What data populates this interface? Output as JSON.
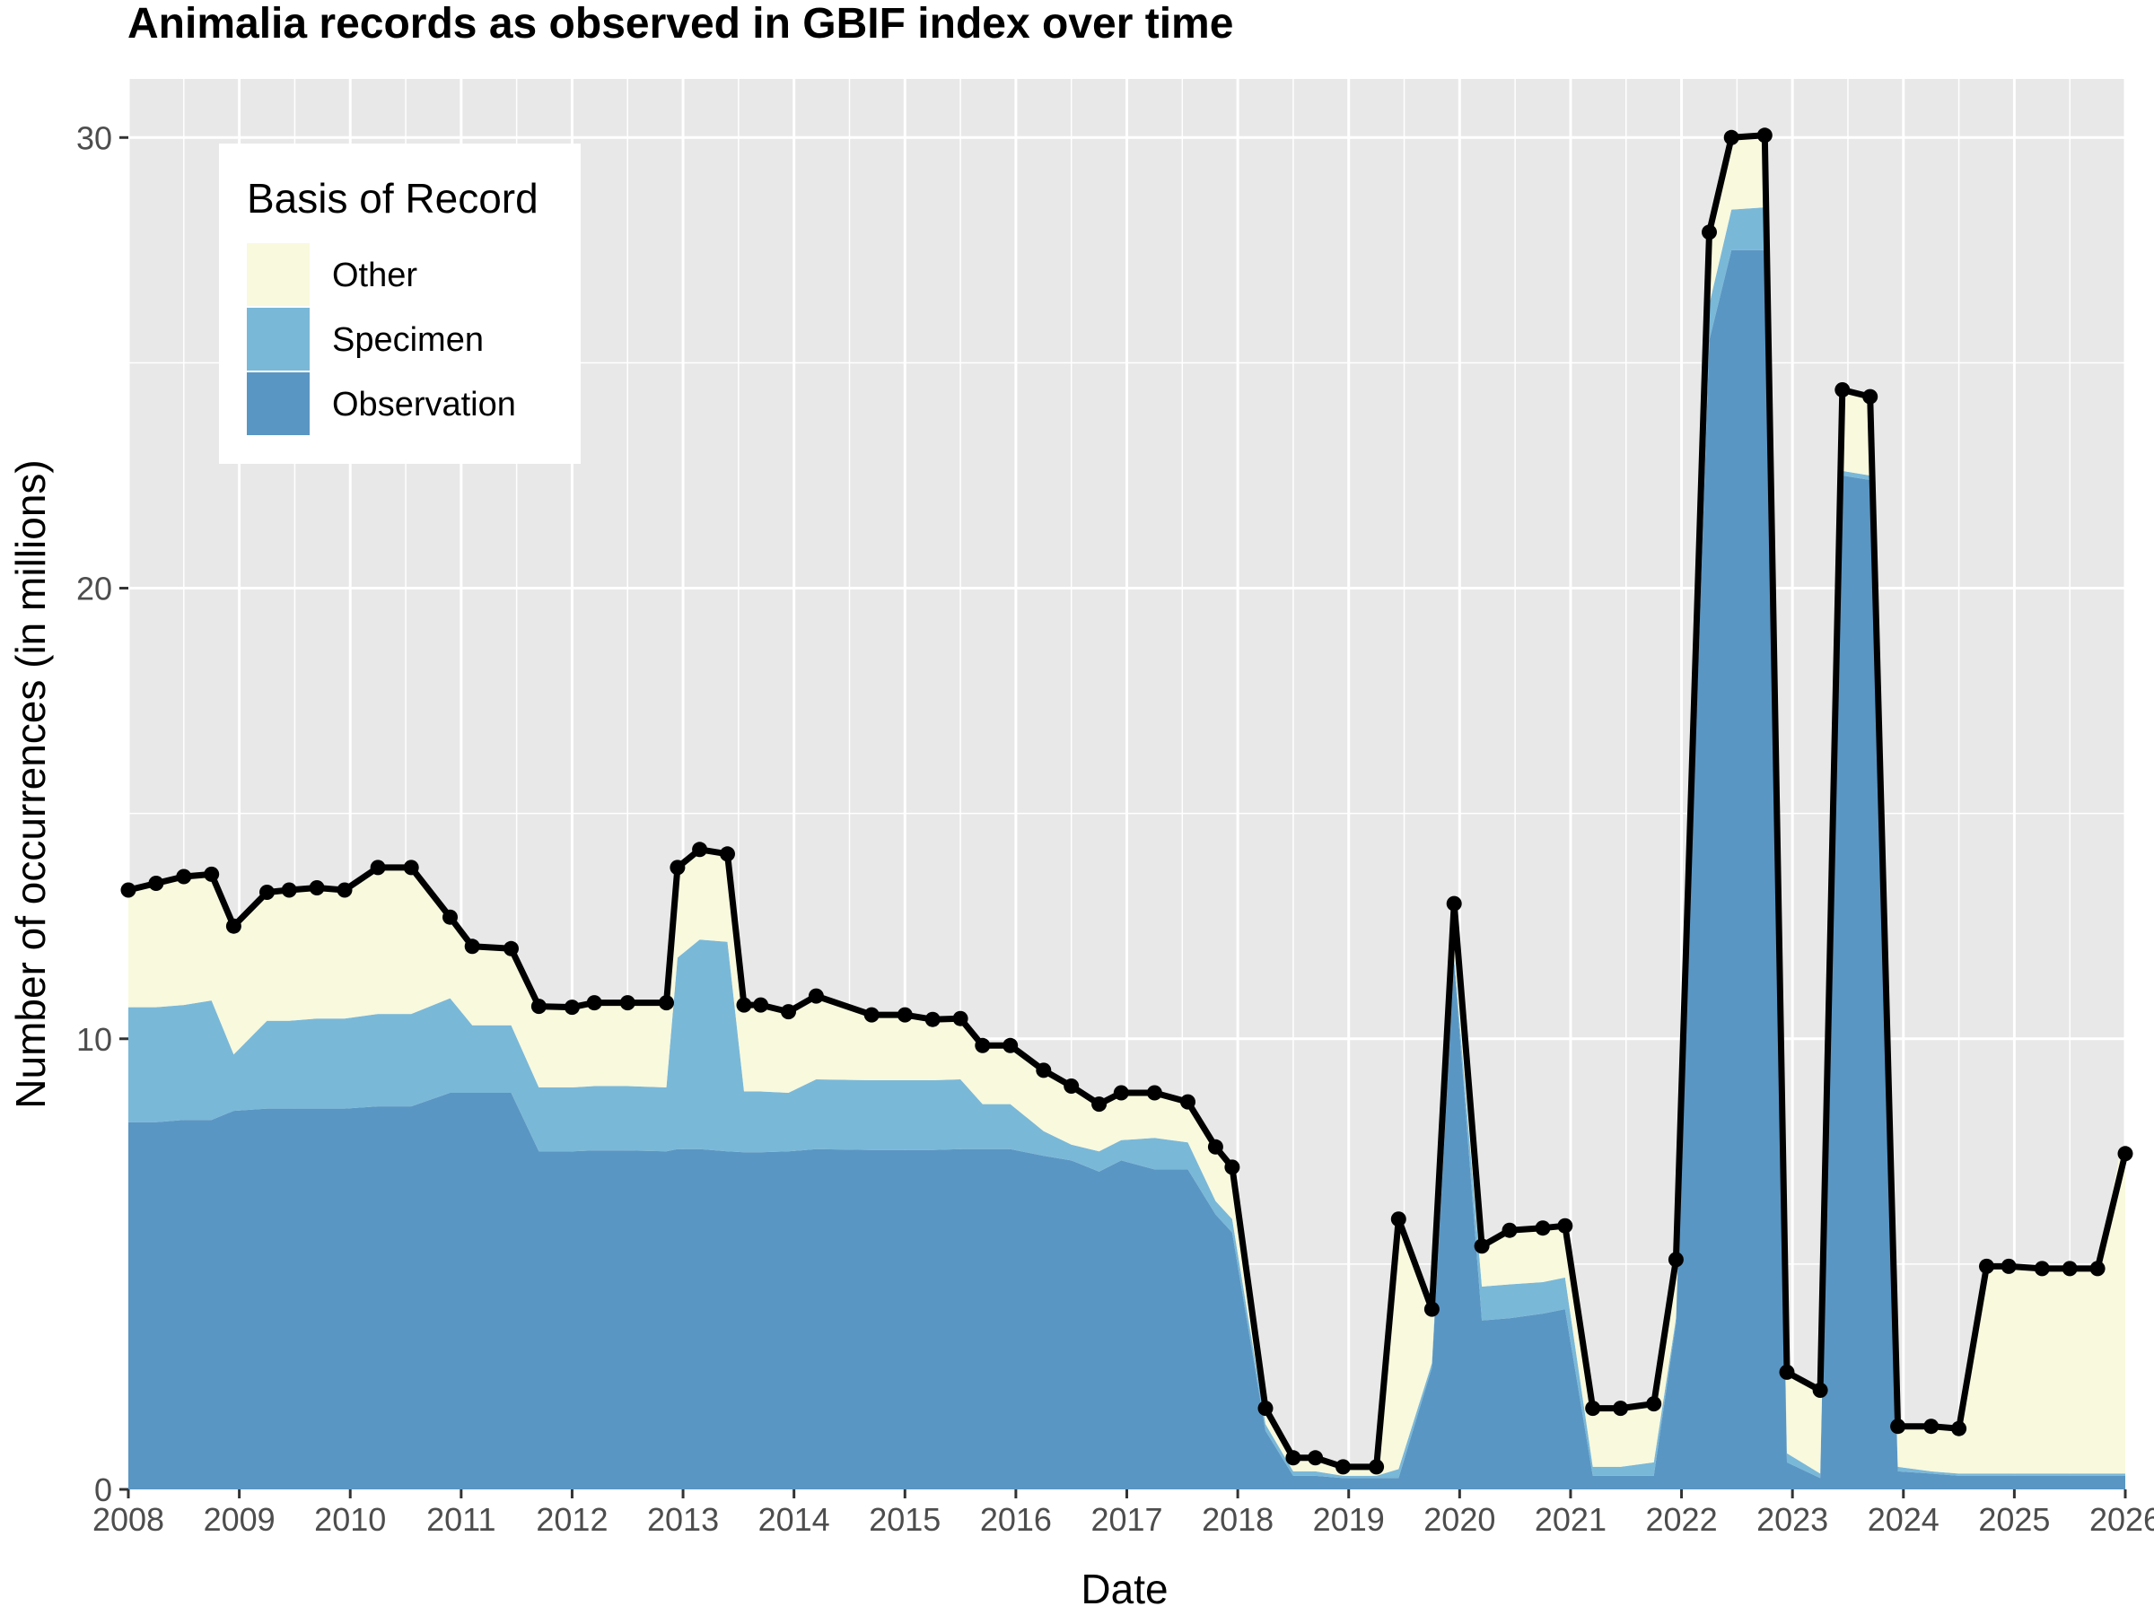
{
  "chart_data": {
    "type": "area",
    "title": "Animalia records as observed in GBIF index over time",
    "xlabel": "Date",
    "ylabel": "Number of occurrences (in millions)",
    "xlim": [
      2008,
      2026
    ],
    "ylim": [
      0,
      31.3
    ],
    "x_ticks": [
      "2008",
      "2009",
      "2010",
      "2011",
      "2012",
      "2013",
      "2014",
      "2015",
      "2016",
      "2017",
      "2018",
      "2019",
      "2020",
      "2021",
      "2022",
      "2023",
      "2024",
      "2025",
      "2026"
    ],
    "y_ticks": [
      0,
      10,
      20,
      30
    ],
    "grid": true,
    "legend": {
      "title": "Basis of Record",
      "position": "top-left",
      "entries": [
        {
          "name": "Other",
          "color": "#f8f9dd"
        },
        {
          "name": "Specimen",
          "color": "#7ab8d8"
        },
        {
          "name": "Observation",
          "color": "#5a96c3"
        }
      ]
    },
    "colors": {
      "panel": "#e8e8e8",
      "grid": "#ffffff",
      "total_line": "#000000"
    },
    "x": [
      2008.0,
      2008.25,
      2008.5,
      2008.75,
      2008.95,
      2009.25,
      2009.45,
      2009.7,
      2009.95,
      2010.25,
      2010.55,
      2010.9,
      2011.1,
      2011.45,
      2011.7,
      2012.0,
      2012.2,
      2012.5,
      2012.85,
      2012.95,
      2013.15,
      2013.4,
      2013.55,
      2013.7,
      2013.95,
      2014.2,
      2014.7,
      2015.0,
      2015.25,
      2015.5,
      2015.7,
      2015.95,
      2016.25,
      2016.5,
      2016.75,
      2016.95,
      2017.25,
      2017.55,
      2017.8,
      2017.95,
      2018.25,
      2018.5,
      2018.7,
      2018.95,
      2019.25,
      2019.45,
      2019.75,
      2019.95,
      2020.2,
      2020.45,
      2020.75,
      2020.95,
      2021.2,
      2021.45,
      2021.75,
      2021.95,
      2022.25,
      2022.45,
      2022.75,
      2022.95,
      2023.25,
      2023.45,
      2023.7,
      2023.95,
      2024.25,
      2024.5,
      2024.75,
      2024.95,
      2025.25,
      2025.5,
      2025.75,
      2025.95,
      2026.0
    ],
    "series": [
      {
        "name": "Observation",
        "values": [
          8.15,
          8.15,
          8.2,
          8.2,
          8.4,
          8.45,
          8.45,
          8.45,
          8.45,
          8.5,
          8.5,
          8.8,
          8.8,
          8.8,
          7.5,
          7.5,
          7.52,
          7.52,
          7.5,
          7.55,
          7.55,
          7.5,
          7.48,
          7.48,
          7.5,
          7.55,
          7.53,
          7.53,
          7.53,
          7.55,
          7.55,
          7.55,
          7.4,
          7.3,
          7.05,
          7.3,
          7.1,
          7.1,
          6.1,
          5.7,
          1.3,
          0.3,
          0.3,
          0.25,
          0.25,
          0.25,
          2.7,
          11.7,
          3.75,
          3.8,
          3.9,
          4.0,
          0.3,
          0.3,
          0.3,
          3.7,
          25.5,
          27.5,
          27.5,
          0.6,
          0.25,
          22.5,
          22.4,
          0.4,
          0.35,
          0.3,
          0.3,
          0.3,
          0.3,
          0.3,
          0.3,
          0.3,
          0.3
        ]
      },
      {
        "name": "Specimen",
        "values": [
          2.55,
          2.55,
          2.55,
          2.65,
          1.25,
          1.95,
          1.95,
          2.0,
          2.0,
          2.05,
          2.05,
          2.1,
          1.5,
          1.5,
          1.42,
          1.42,
          1.43,
          1.43,
          1.42,
          4.25,
          4.65,
          4.65,
          1.35,
          1.35,
          1.3,
          1.55,
          1.55,
          1.55,
          1.55,
          1.55,
          1.0,
          1.0,
          0.55,
          0.35,
          0.45,
          0.45,
          0.7,
          0.6,
          0.3,
          0.3,
          0.15,
          0.1,
          0.1,
          0.05,
          0.05,
          0.2,
          0.1,
          0.1,
          0.75,
          0.75,
          0.7,
          0.7,
          0.2,
          0.2,
          0.3,
          0.1,
          0.8,
          0.9,
          0.95,
          0.2,
          0.1,
          0.1,
          0.1,
          0.1,
          0.05,
          0.05,
          0.05,
          0.05,
          0.05,
          0.05,
          0.05,
          0.05,
          0.05
        ]
      },
      {
        "name": "Other",
        "values": [
          2.6,
          2.75,
          2.85,
          2.85,
          2.85,
          2.85,
          2.9,
          2.9,
          2.85,
          3.25,
          3.25,
          1.8,
          1.75,
          1.7,
          1.8,
          1.78,
          1.85,
          1.85,
          1.88,
          2.0,
          2.0,
          1.95,
          1.92,
          1.92,
          1.83,
          1.85,
          1.45,
          1.45,
          1.35,
          1.35,
          1.3,
          1.3,
          1.35,
          1.3,
          1.05,
          1.05,
          1.0,
          0.9,
          1.2,
          1.15,
          0.35,
          0.3,
          0.3,
          0.2,
          0.2,
          5.55,
          1.2,
          1.2,
          0.9,
          1.2,
          1.2,
          1.15,
          1.3,
          1.3,
          1.3,
          1.3,
          1.6,
          1.6,
          1.6,
          1.8,
          1.85,
          1.8,
          1.75,
          0.9,
          1.0,
          1.0,
          4.6,
          4.6,
          4.55,
          4.55,
          4.55,
          7.1,
          7.1
        ]
      }
    ],
    "total_points": {
      "x": [
        2008.0,
        2008.25,
        2008.5,
        2008.75,
        2008.95,
        2009.25,
        2009.45,
        2009.7,
        2009.95,
        2010.25,
        2010.55,
        2010.9,
        2011.1,
        2011.45,
        2011.7,
        2012.0,
        2012.2,
        2012.5,
        2012.85,
        2012.95,
        2013.15,
        2013.4,
        2013.55,
        2013.7,
        2013.95,
        2014.2,
        2014.7,
        2015.0,
        2015.25,
        2015.5,
        2015.7,
        2015.95,
        2016.25,
        2016.5,
        2016.75,
        2016.95,
        2017.25,
        2017.55,
        2017.8,
        2017.95,
        2018.25,
        2018.5,
        2018.7,
        2018.95,
        2019.25,
        2019.45,
        2019.75,
        2019.95,
        2020.2,
        2020.45,
        2020.75,
        2020.95,
        2021.2,
        2021.45,
        2021.75,
        2021.95,
        2022.25,
        2022.45,
        2022.75,
        2022.95,
        2023.25,
        2023.45,
        2023.7,
        2023.95,
        2024.25,
        2024.5,
        2024.75,
        2024.95,
        2025.25,
        2025.5,
        2025.75,
        2026.0
      ],
      "y": [
        13.3,
        13.45,
        13.6,
        13.65,
        12.5,
        13.25,
        13.3,
        13.35,
        13.3,
        13.8,
        13.8,
        12.7,
        12.05,
        12.0,
        10.72,
        10.7,
        10.8,
        10.8,
        10.8,
        13.8,
        14.2,
        14.1,
        10.75,
        10.75,
        10.6,
        10.95,
        10.53,
        10.53,
        10.43,
        10.45,
        9.85,
        9.85,
        9.3,
        8.95,
        8.55,
        8.8,
        8.8,
        8.6,
        7.6,
        7.15,
        1.8,
        0.7,
        0.7,
        0.5,
        0.5,
        6.0,
        4.0,
        13.0,
        5.4,
        5.75,
        5.8,
        5.85,
        1.8,
        1.8,
        1.9,
        5.1,
        27.9,
        30.0,
        30.05,
        2.6,
        2.2,
        24.4,
        24.25,
        1.4,
        1.4,
        1.35,
        4.95,
        4.95,
        4.9,
        4.9,
        4.9,
        7.45
      ]
    }
  }
}
